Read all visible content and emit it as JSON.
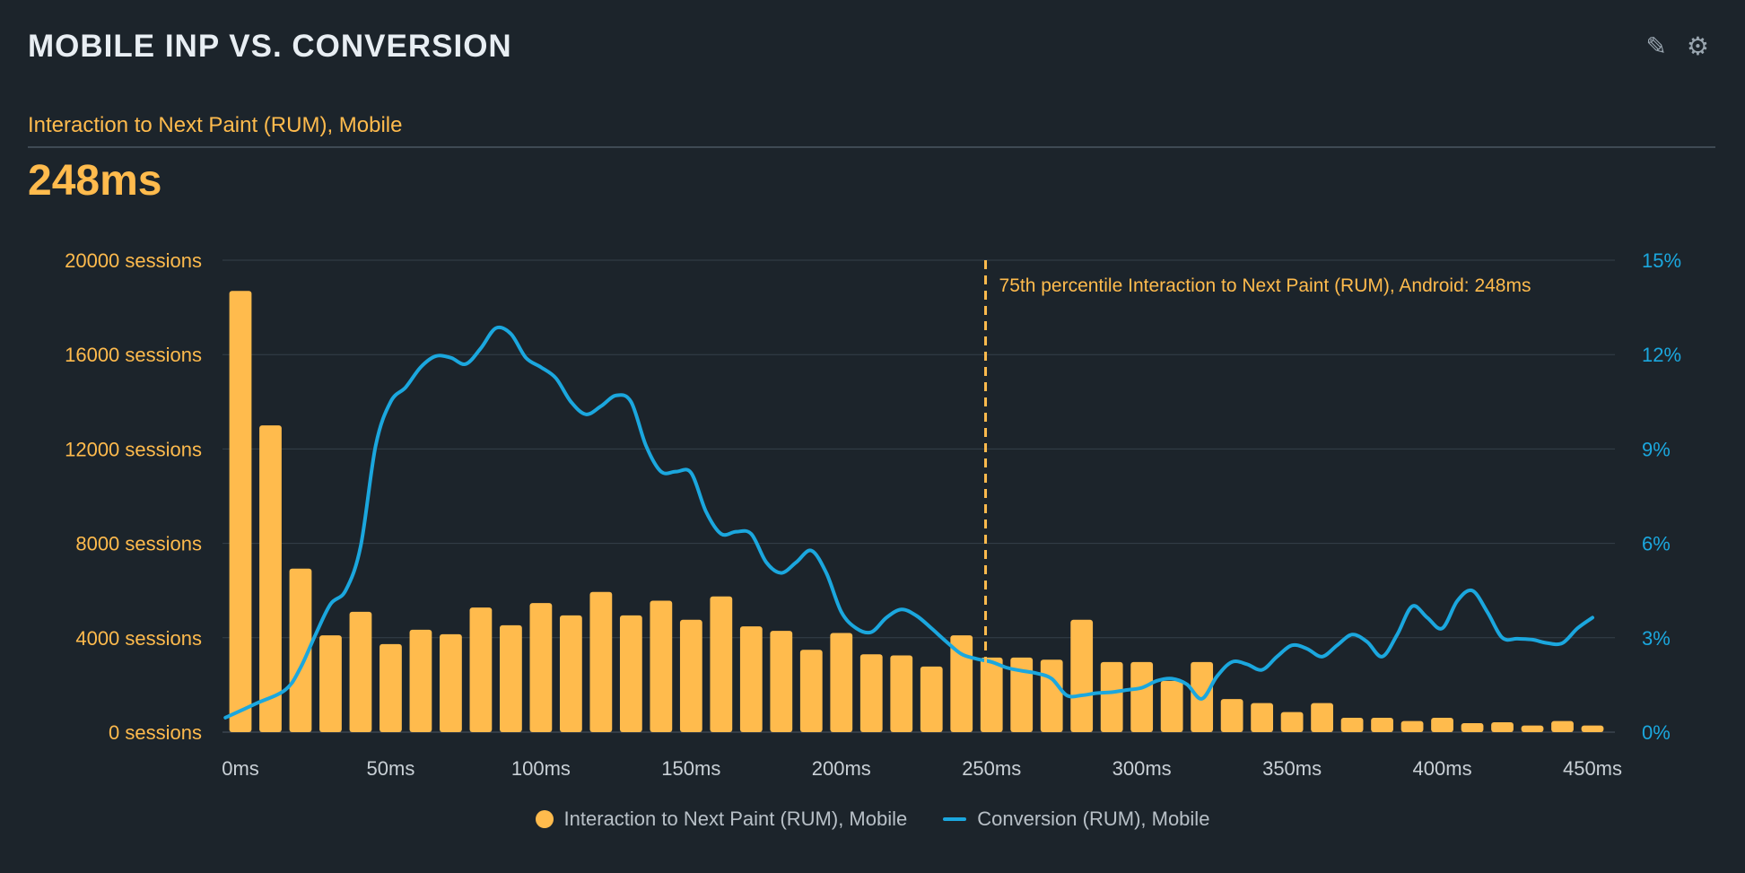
{
  "header": {
    "title": "MOBILE INP VS. CONVERSION",
    "edit_icon": "pencil-icon",
    "settings_icon": "gear-icon"
  },
  "metric": {
    "label": "Interaction to Next Paint (RUM), Mobile",
    "value": "248ms"
  },
  "colors": {
    "background": "#1c242b",
    "bars": "#ffbb4d",
    "line": "#1ba7de",
    "grid": "#34404a"
  },
  "chart_data": {
    "type": "bar+line",
    "title": "MOBILE INP VS. CONVERSION",
    "x_tick_labels": [
      "0ms",
      "50ms",
      "100ms",
      "150ms",
      "200ms",
      "250ms",
      "300ms",
      "350ms",
      "400ms",
      "450ms"
    ],
    "xlim": [
      0,
      450
    ],
    "y_left": {
      "ylim": [
        0,
        20000
      ],
      "tick_labels": [
        "0 sessions",
        "4000 sessions",
        "8000 sessions",
        "12000 sessions",
        "16000 sessions",
        "20000 sessions"
      ],
      "ticks": [
        0,
        4000,
        8000,
        12000,
        16000,
        20000
      ]
    },
    "y_right": {
      "ylim": [
        0,
        15
      ],
      "tick_labels": [
        "0%",
        "3%",
        "6%",
        "9%",
        "12%",
        "15%"
      ],
      "ticks": [
        0,
        3,
        6,
        9,
        12,
        15
      ]
    },
    "grid": true,
    "legend_position": "bottom-center",
    "series": [
      {
        "name": "Interaction to Next Paint (RUM), Mobile",
        "type": "bar",
        "axis": "left",
        "x": [
          0,
          10,
          20,
          30,
          40,
          50,
          60,
          70,
          80,
          90,
          100,
          110,
          120,
          130,
          140,
          150,
          160,
          170,
          180,
          190,
          200,
          210,
          220,
          230,
          240,
          250,
          260,
          270,
          280,
          290,
          300,
          310,
          320,
          330,
          340,
          350,
          360,
          370,
          380,
          390,
          400,
          410,
          420,
          430,
          440,
          450
        ],
        "values": [
          18700,
          13000,
          6930,
          4100,
          5100,
          3730,
          4340,
          4150,
          5280,
          4530,
          5470,
          4950,
          5940,
          4950,
          5570,
          4760,
          5750,
          4480,
          4290,
          3490,
          4200,
          3300,
          3250,
          2780,
          4100,
          3160,
          3160,
          3070,
          4760,
          2970,
          2970,
          2170,
          2970,
          1400,
          1230,
          850,
          1230,
          610,
          610,
          470,
          610,
          380,
          420,
          280,
          470,
          280
        ]
      },
      {
        "name": "Conversion (RUM), Mobile",
        "type": "line",
        "axis": "right",
        "x": [
          -5,
          5,
          15,
          20,
          25,
          30,
          35,
          40,
          45,
          50,
          55,
          60,
          65,
          70,
          75,
          80,
          85,
          90,
          95,
          100,
          105,
          110,
          115,
          120,
          125,
          130,
          135,
          140,
          145,
          150,
          155,
          160,
          165,
          170,
          175,
          180,
          185,
          190,
          195,
          200,
          205,
          210,
          215,
          220,
          225,
          230,
          235,
          240,
          245,
          250,
          255,
          260,
          265,
          270,
          275,
          280,
          285,
          290,
          295,
          300,
          305,
          310,
          315,
          320,
          325,
          330,
          335,
          340,
          345,
          350,
          355,
          360,
          365,
          370,
          375,
          380,
          385,
          390,
          395,
          400,
          405,
          410,
          415,
          420,
          425,
          430,
          435,
          440,
          445,
          450
        ],
        "values": [
          0.46,
          0.9,
          1.35,
          2.05,
          3.1,
          4.07,
          4.5,
          5.9,
          9.1,
          10.5,
          10.96,
          11.6,
          11.95,
          11.9,
          11.7,
          12.2,
          12.84,
          12.66,
          11.9,
          11.6,
          11.25,
          10.5,
          10.1,
          10.36,
          10.7,
          10.5,
          9.1,
          8.28,
          8.28,
          8.24,
          7.0,
          6.3,
          6.37,
          6.3,
          5.4,
          5.06,
          5.4,
          5.77,
          5.06,
          3.82,
          3.3,
          3.18,
          3.64,
          3.9,
          3.7,
          3.3,
          2.87,
          2.48,
          2.33,
          2.23,
          2.05,
          1.95,
          1.87,
          1.7,
          1.17,
          1.17,
          1.24,
          1.27,
          1.34,
          1.41,
          1.63,
          1.7,
          1.52,
          1.06,
          1.77,
          2.23,
          2.16,
          1.98,
          2.4,
          2.76,
          2.65,
          2.4,
          2.76,
          3.1,
          2.87,
          2.4,
          3.1,
          4.0,
          3.64,
          3.3,
          4.17,
          4.5,
          3.82,
          3.0,
          2.97,
          2.94,
          2.83,
          2.83,
          3.3,
          3.64
        ]
      }
    ],
    "annotations": [
      {
        "type": "vertical-line",
        "x": 248,
        "label": "75th percentile Interaction to Next Paint (RUM), Android: 248ms"
      }
    ]
  },
  "legend": [
    {
      "label": "Interaction to Next Paint (RUM), Mobile"
    },
    {
      "label": "Conversion (RUM), Mobile"
    }
  ]
}
